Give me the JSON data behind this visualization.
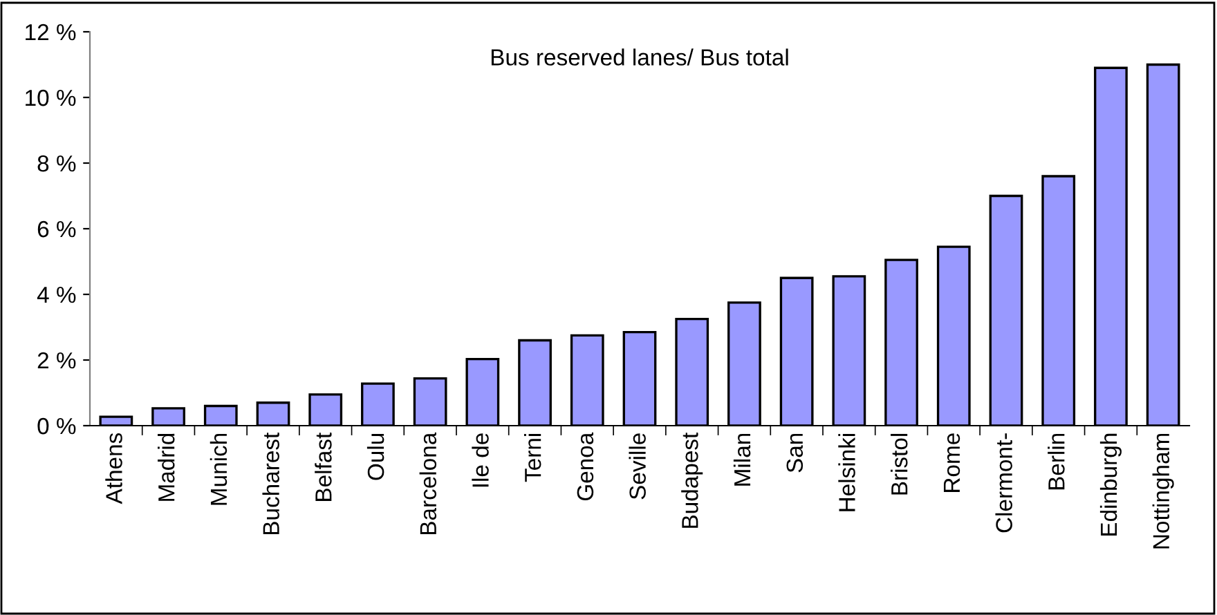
{
  "chart_data": {
    "type": "bar",
    "title": "Bus reserved lanes/ Bus total",
    "categories": [
      "Athens",
      "Madrid",
      "Munich",
      "Bucharest",
      "Belfast",
      "Oulu",
      "Barcelona",
      "Ile de",
      "Terni",
      "Genoa",
      "Seville",
      "Budapest",
      "Milan",
      "San",
      "Helsinki",
      "Bristol",
      "Rome",
      "Clermont-",
      "Berlin",
      "Edinburgh",
      "Nottingham"
    ],
    "values": [
      0.27,
      0.53,
      0.6,
      0.7,
      0.95,
      1.28,
      1.44,
      2.03,
      2.6,
      2.75,
      2.85,
      3.25,
      3.75,
      4.5,
      4.55,
      5.05,
      5.45,
      7.0,
      7.6,
      10.9,
      11.0
    ],
    "color": "#9999ff",
    "ylim": [
      0,
      12
    ],
    "yticks": [
      {
        "value": 0,
        "label": "0 %"
      },
      {
        "value": 2,
        "label": "2 %"
      },
      {
        "value": 4,
        "label": "4 %"
      },
      {
        "value": 6,
        "label": "6 %"
      },
      {
        "value": 8,
        "label": "8 %"
      },
      {
        "value": 10,
        "label": "10 %"
      },
      {
        "value": 12,
        "label": "12 %"
      }
    ],
    "grid": false,
    "legend": false
  }
}
